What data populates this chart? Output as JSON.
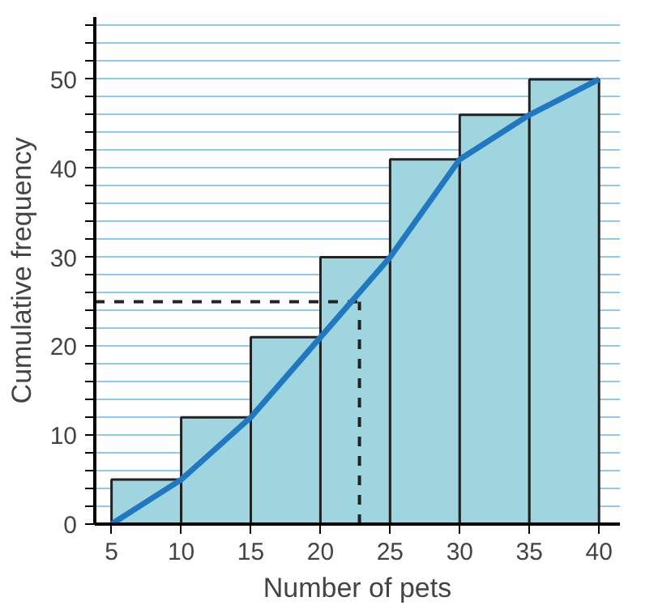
{
  "chart_data": {
    "type": "histogram",
    "xlabel": "Number of pets",
    "ylabel": "Cumulative frequency",
    "bins": [
      5,
      10,
      15,
      20,
      25,
      30,
      35,
      40
    ],
    "values": [
      5,
      12,
      21,
      30,
      41,
      46,
      50
    ],
    "color": "#9fd5df",
    "series": [
      {
        "type": "line",
        "color": "#1f78c1",
        "x": [
          5,
          10,
          15,
          20,
          25,
          30,
          35,
          40
        ],
        "values": [
          0,
          5,
          12,
          21,
          30,
          41,
          46,
          50
        ]
      }
    ],
    "ref_lines": [
      {
        "axis": "y",
        "value": 25,
        "line_style": "dashed",
        "color": "#222222"
      },
      {
        "axis": "x",
        "value": 22.8,
        "line_style": "dashed",
        "color": "#222222"
      }
    ],
    "xlim": [
      3.8,
      41.5
    ],
    "ylim": [
      0,
      57
    ],
    "xticks": [
      5,
      10,
      15,
      20,
      25,
      30,
      35,
      40
    ],
    "yticks": [
      0,
      {
        "value": 2,
        "label": null
      },
      {
        "value": 4,
        "label": null
      },
      {
        "value": 6,
        "label": null
      },
      {
        "value": 8,
        "label": null
      },
      10,
      {
        "value": 12,
        "label": null
      },
      {
        "value": 14,
        "label": null
      },
      {
        "value": 16,
        "label": null
      },
      {
        "value": 18,
        "label": null
      },
      20,
      {
        "value": 22,
        "label": null
      },
      {
        "value": 24,
        "label": null
      },
      {
        "value": 26,
        "label": null
      },
      {
        "value": 28,
        "label": null
      },
      30,
      {
        "value": 32,
        "label": null
      },
      {
        "value": 34,
        "label": null
      },
      {
        "value": 36,
        "label": null
      },
      {
        "value": 38,
        "label": null
      },
      40,
      {
        "value": 42,
        "label": null
      },
      {
        "value": 44,
        "label": null
      },
      {
        "value": 46,
        "label": null
      },
      {
        "value": 48,
        "label": null
      },
      50,
      {
        "value": 52,
        "label": null
      },
      {
        "value": 54,
        "label": null
      },
      {
        "value": 56,
        "label": null
      }
    ],
    "grid": "y"
  }
}
